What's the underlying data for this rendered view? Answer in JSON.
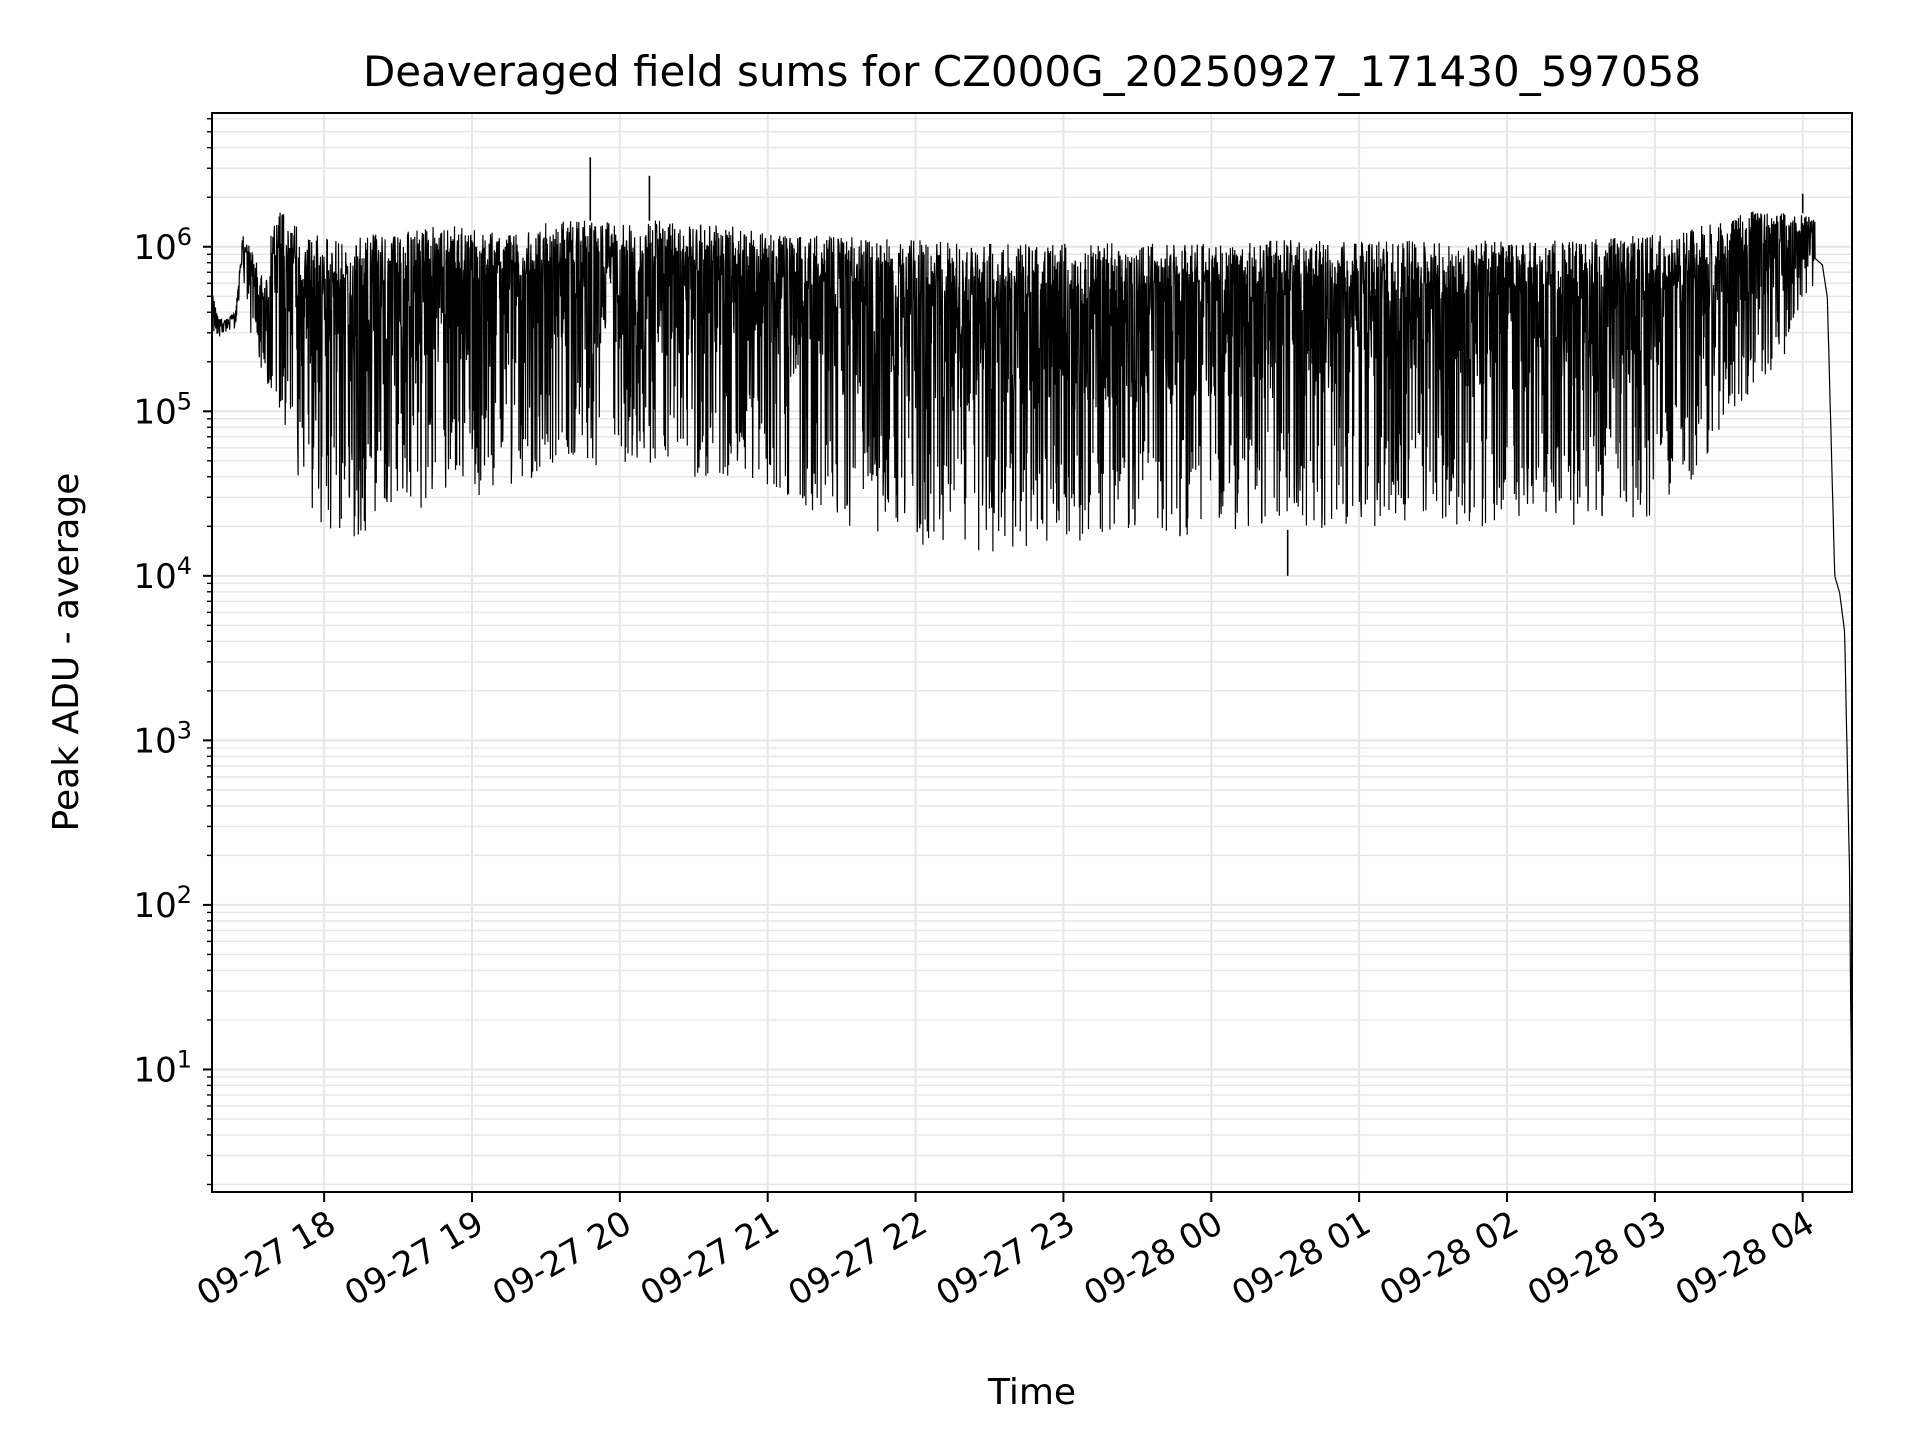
{
  "chart_data": {
    "type": "line",
    "title": "Deaveraged field sums for CZ000G_20250927_171430_597058",
    "xlabel": "Time",
    "ylabel": "Peak ADU - average",
    "yscale": "log",
    "ylim": [
      1.8,
      6500000.0
    ],
    "xlim": [
      "2025-09-27 17:14:30",
      "2025-09-28 04:20:00"
    ],
    "grid": "major and minor",
    "line_color": "#000000",
    "grid_color": "#e6e6e6",
    "xticks": [
      {
        "t": "2025-09-27 18:00",
        "label": "09-27 18"
      },
      {
        "t": "2025-09-27 19:00",
        "label": "09-27 19"
      },
      {
        "t": "2025-09-27 20:00",
        "label": "09-27 20"
      },
      {
        "t": "2025-09-27 21:00",
        "label": "09-27 21"
      },
      {
        "t": "2025-09-27 22:00",
        "label": "09-27 22"
      },
      {
        "t": "2025-09-27 23:00",
        "label": "09-27 23"
      },
      {
        "t": "2025-09-28 00:00",
        "label": "09-28 00"
      },
      {
        "t": "2025-09-28 01:00",
        "label": "09-28 01"
      },
      {
        "t": "2025-09-28 02:00",
        "label": "09-28 02"
      },
      {
        "t": "2025-09-28 03:00",
        "label": "09-28 03"
      },
      {
        "t": "2025-09-28 04:00",
        "label": "09-28 04"
      }
    ],
    "yticks": [
      {
        "value": 10,
        "base": "10",
        "exp": "1"
      },
      {
        "value": 100,
        "base": "10",
        "exp": "2"
      },
      {
        "value": 1000,
        "base": "10",
        "exp": "3"
      },
      {
        "value": 10000,
        "base": "10",
        "exp": "4"
      },
      {
        "value": 100000,
        "base": "10",
        "exp": "5"
      },
      {
        "value": 1000000,
        "base": "10",
        "exp": "6"
      }
    ],
    "series": [
      {
        "x": [
          "2025-09-27 17:14:30",
          "2025-09-27 17:17:00",
          "2025-09-27 17:20:00",
          "2025-09-27 17:24:00",
          "2025-09-27 17:27:00",
          "2025-09-27 17:30:00",
          "2025-09-27 17:33:00",
          "2025-09-27 17:36:00",
          "2025-09-27 17:39:00",
          "2025-09-27 17:42:00",
          "2025-09-27 17:45:00",
          "2025-09-27 17:48:00",
          "2025-09-27 17:52:00",
          "2025-09-27 17:56:00",
          "2025-09-27 18:00:00",
          "2025-09-27 18:06:00",
          "2025-09-27 18:12:00",
          "2025-09-27 18:18:00",
          "2025-09-27 18:24:00",
          "2025-09-27 18:30:00",
          "2025-09-27 18:40:00",
          "2025-09-27 18:50:00",
          "2025-09-27 19:00:00",
          "2025-09-27 19:15:00",
          "2025-09-27 19:30:00",
          "2025-09-27 19:45:00",
          "2025-09-27 20:00:00",
          "2025-09-27 20:15:00",
          "2025-09-27 20:30:00",
          "2025-09-27 20:45:00",
          "2025-09-27 21:00:00",
          "2025-09-27 21:30:00",
          "2025-09-27 22:00:00",
          "2025-09-27 22:30:00",
          "2025-09-27 23:00:00",
          "2025-09-27 23:30:00",
          "2025-09-28 00:00:00",
          "2025-09-28 00:30:00",
          "2025-09-28 01:00:00",
          "2025-09-28 01:30:00",
          "2025-09-28 02:00:00",
          "2025-09-28 02:30:00",
          "2025-09-28 03:00:00",
          "2025-09-28 03:20:00",
          "2025-09-28 03:40:00",
          "2025-09-28 04:00:00",
          "2025-09-28 04:05:00",
          "2025-09-28 04:08:00",
          "2025-09-28 04:10:00",
          "2025-09-28 04:13:00",
          "2025-09-28 04:15:00",
          "2025-09-28 04:17:00",
          "2025-09-28 04:19:00",
          "2025-09-28 04:20:00"
        ],
        "y_upper": [
          550000,
          380000,
          360000,
          400000,
          1200000,
          1000000,
          800000,
          600000,
          1400000,
          1700000,
          1700000,
          1500000,
          1300000,
          1200000,
          1150000,
          1100000,
          1150000,
          1200000,
          1200000,
          1250000,
          1300000,
          1400000,
          1300000,
          1250000,
          1400000,
          1450000,
          1400000,
          1450000,
          1400000,
          1350000,
          1200000,
          1150000,
          1100000,
          1050000,
          1050000,
          1050000,
          1050000,
          1100000,
          1100000,
          1100000,
          1100000,
          1100000,
          1200000,
          1350000,
          1650000,
          1600000,
          1450000,
          1200000,
          800000,
          10500,
          9500,
          7000,
          2500,
          3.5
        ],
        "y_lower": [
          300000,
          280000,
          300000,
          320000,
          700000,
          300000,
          200000,
          150000,
          130000,
          100000,
          60000,
          45000,
          30000,
          22000,
          20000,
          18000,
          17000,
          18000,
          22000,
          25000,
          25000,
          28000,
          30000,
          35000,
          40000,
          45000,
          50000,
          45000,
          40000,
          40000,
          35000,
          20000,
          15000,
          14000,
          15000,
          16000,
          18000,
          19000,
          20000,
          20000,
          20000,
          20000,
          22000,
          45000,
          120000,
          300000,
          500000,
          500000,
          300000,
          9500,
          6500,
          3000,
          10,
          3.5
        ],
        "spikes": [
          {
            "x": "2025-09-27 19:48:00",
            "y": 3500000
          },
          {
            "x": "2025-09-27 20:12:00",
            "y": 2700000
          },
          {
            "x": "2025-09-28 04:00:00",
            "y": 2100000
          },
          {
            "x": "2025-09-28 00:31:00",
            "y": 10000
          }
        ]
      }
    ]
  }
}
